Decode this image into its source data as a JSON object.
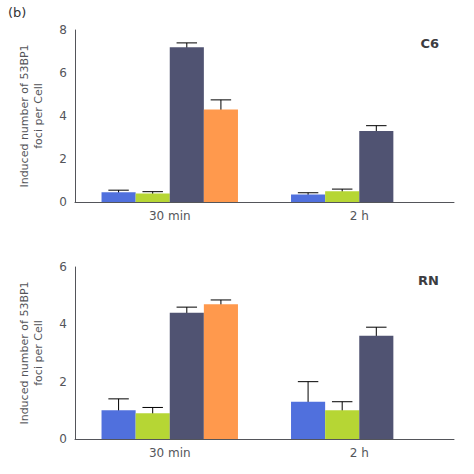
{
  "chart_data": [
    {
      "type": "bar",
      "title": "C6",
      "ylabel": "Induced number of 53BP1\nfoci per Cell",
      "categories": [
        "30 min",
        "2 h"
      ],
      "series": [
        {
          "values": [
            0.45,
            0.35
          ],
          "errors": [
            0.1,
            0.08
          ]
        },
        {
          "values": [
            0.4,
            0.5
          ],
          "errors": [
            0.08,
            0.1
          ]
        },
        {
          "values": [
            7.2,
            3.3
          ],
          "errors": [
            0.2,
            0.25
          ]
        },
        {
          "values": [
            4.3,
            0.0
          ],
          "errors": [
            0.45,
            0.0
          ]
        }
      ],
      "ylim": [
        0,
        8
      ],
      "yticks": [
        0,
        2,
        4,
        6,
        8
      ],
      "grid": false,
      "annotations": [
        "(b)"
      ]
    },
    {
      "type": "bar",
      "title": "RN",
      "ylabel": "Induced number of 53BP1\nfoci per Cell",
      "categories": [
        "30 min",
        "2 h"
      ],
      "series": [
        {
          "values": [
            1.0,
            1.3
          ],
          "errors": [
            0.4,
            0.7
          ]
        },
        {
          "values": [
            0.9,
            1.0
          ],
          "errors": [
            0.2,
            0.3
          ]
        },
        {
          "values": [
            4.4,
            3.6
          ],
          "errors": [
            0.2,
            0.3
          ]
        },
        {
          "values": [
            4.7,
            0.0
          ],
          "errors": [
            0.15,
            0.0
          ]
        }
      ],
      "ylim": [
        0,
        6
      ],
      "yticks": [
        0,
        2,
        4,
        6
      ],
      "grid": false
    }
  ]
}
